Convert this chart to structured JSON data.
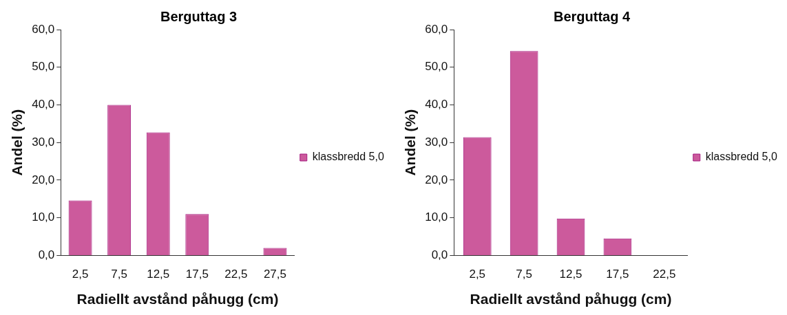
{
  "chart_data": [
    {
      "type": "bar",
      "title": "Berguttag 3",
      "xlabel": "Radiellt avstånd påhugg (cm)",
      "ylabel": "Andel (%)",
      "categories": [
        "2,5",
        "7,5",
        "12,5",
        "17,5",
        "22,5",
        "27,5"
      ],
      "series": [
        {
          "name": "klassbredd 5,0",
          "color": "#cc5a9c",
          "values": [
            14.6,
            40.0,
            32.7,
            11.0,
            0,
            2.0
          ]
        }
      ],
      "ylim": [
        0,
        60
      ],
      "yticks": [
        {
          "value": 0,
          "label": "0,0"
        },
        {
          "value": 10,
          "label": "10,0"
        },
        {
          "value": 20,
          "label": "20,0"
        },
        {
          "value": 30,
          "label": "30,0"
        },
        {
          "value": 40,
          "label": "40,0"
        },
        {
          "value": 50,
          "label": "50,0"
        },
        {
          "value": 60,
          "label": "60,0"
        }
      ],
      "grid": false,
      "legend": "right"
    },
    {
      "type": "bar",
      "title": "Berguttag 4",
      "xlabel": "Radiellt avstånd påhugg (cm)",
      "ylabel": "Andel (%)",
      "categories": [
        "2,5",
        "7,5",
        "12,5",
        "17,5",
        "22,5"
      ],
      "series": [
        {
          "name": "klassbredd 5,0",
          "color": "#cc5a9c",
          "values": [
            31.4,
            54.3,
            9.8,
            4.5,
            0
          ]
        }
      ],
      "ylim": [
        0,
        60
      ],
      "yticks": [
        {
          "value": 0,
          "label": "0,0"
        },
        {
          "value": 10,
          "label": "10,0"
        },
        {
          "value": 20,
          "label": "20,0"
        },
        {
          "value": 30,
          "label": "30,0"
        },
        {
          "value": 40,
          "label": "40,0"
        },
        {
          "value": 50,
          "label": "50,0"
        },
        {
          "value": 60,
          "label": "60,0"
        }
      ],
      "grid": false,
      "legend": "right"
    }
  ]
}
